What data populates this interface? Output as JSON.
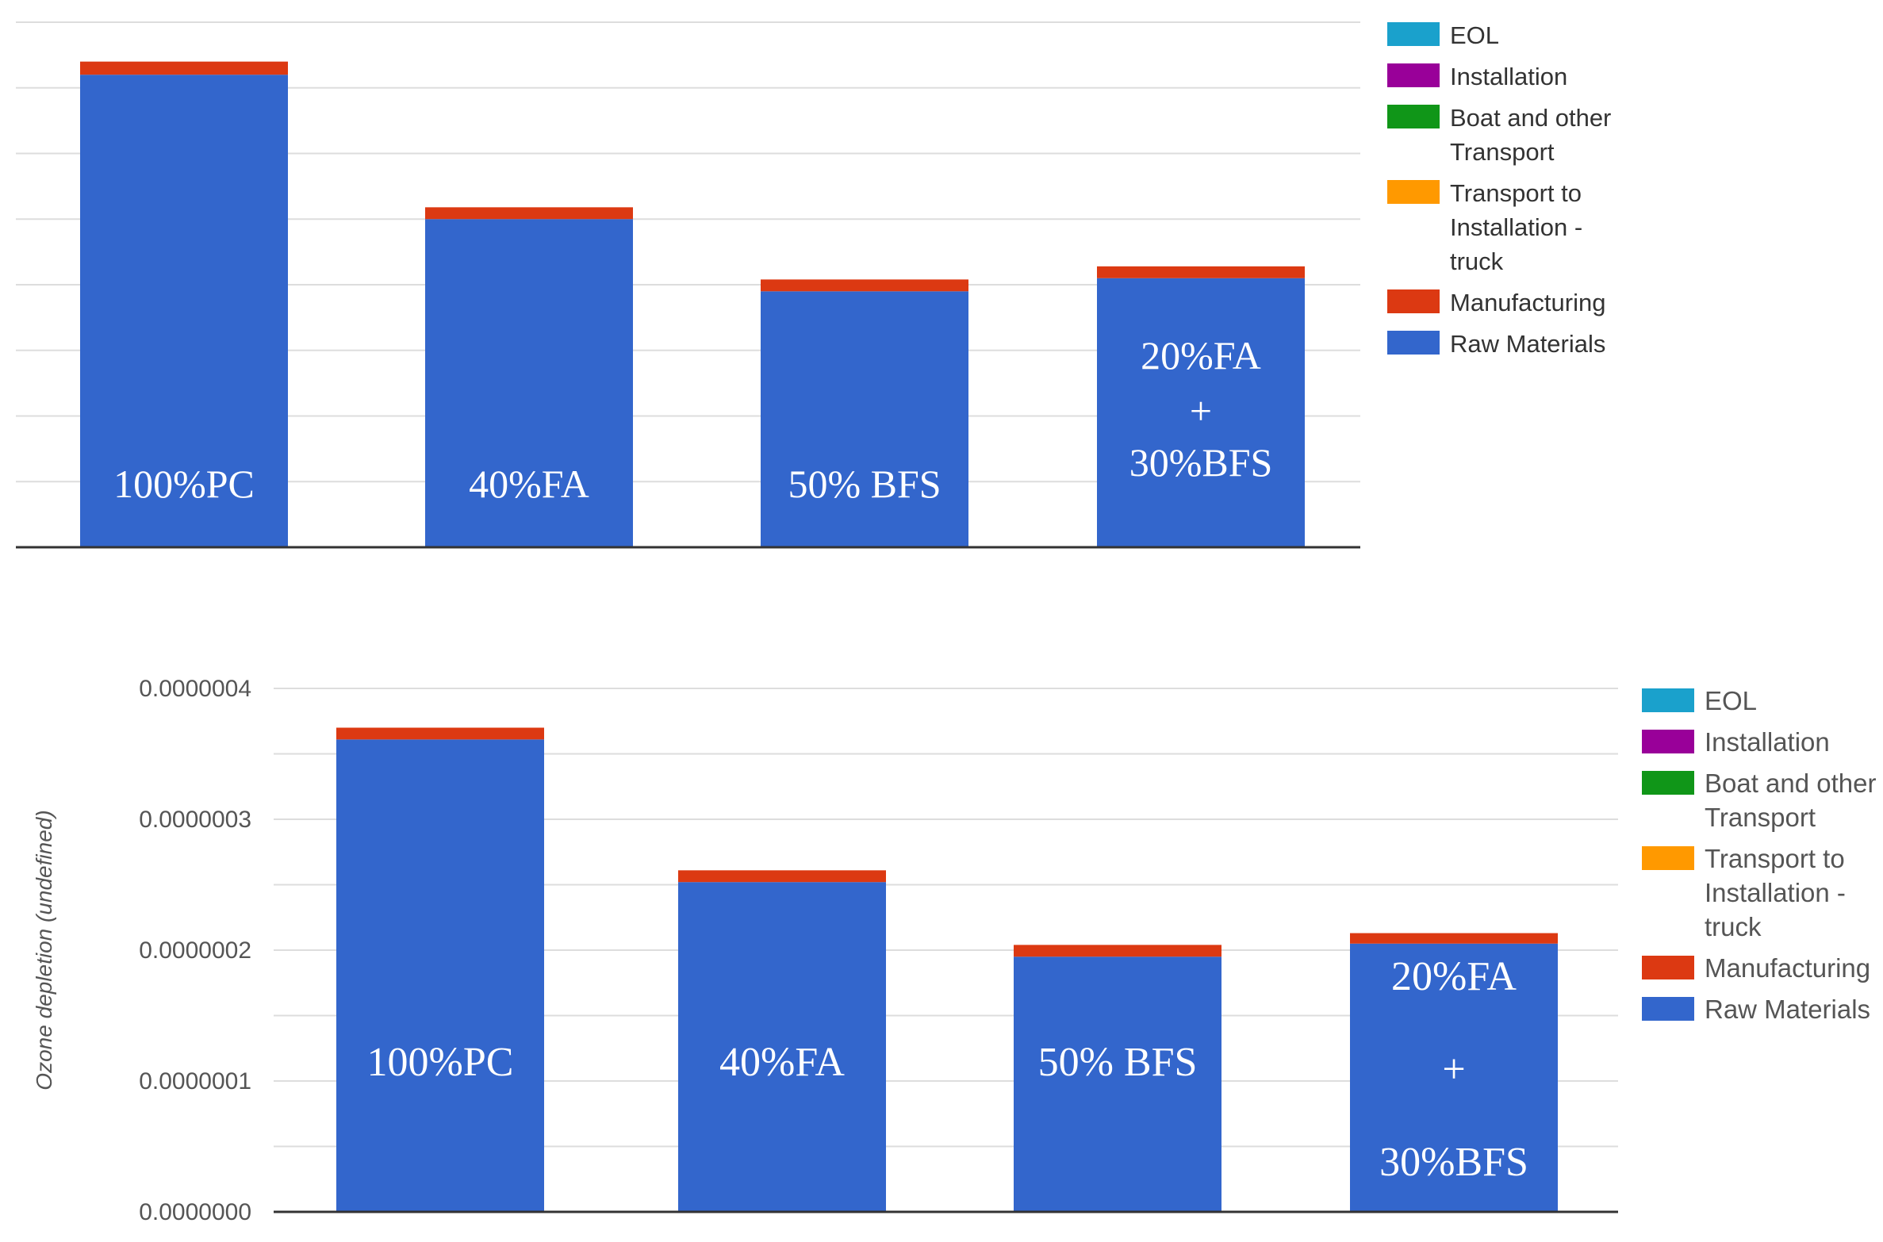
{
  "colors": {
    "EOL": "#1aa1cc",
    "Installation": "#990099",
    "Boat and other Transport": "#109618",
    "Transport to Installation - truck": "#ff9900",
    "Manufacturing": "#dc3912",
    "Raw Materials": "#3366cc"
  },
  "chart_data": [
    {
      "type": "bar",
      "stacked": true,
      "categories": [
        "100%PC",
        "40%FA",
        "50% BFS",
        "20%FA + 30%BFS"
      ],
      "bar_labels": [
        [
          "100%PC"
        ],
        [
          "40%FA"
        ],
        [
          "50% BFS"
        ],
        [
          "20%FA",
          "+",
          "30%BFS"
        ]
      ],
      "series": [
        {
          "name": "Raw Materials",
          "values": [
            3.6,
            2.5,
            1.95,
            2.05
          ]
        },
        {
          "name": "Manufacturing",
          "values": [
            0.1,
            0.09,
            0.09,
            0.09
          ]
        },
        {
          "name": "Transport to Installation - truck",
          "values": [
            0.0,
            0.0,
            0.0,
            0.0
          ]
        },
        {
          "name": "Boat and other Transport",
          "values": [
            0.0,
            0.0,
            0.0,
            0.0
          ]
        },
        {
          "name": "Installation",
          "values": [
            0.0,
            0.0,
            0.0,
            0.0
          ]
        },
        {
          "name": "EOL",
          "values": [
            0.0,
            0.0,
            0.0,
            0.0
          ]
        }
      ],
      "legend": [
        {
          "name": "EOL",
          "lines": [
            "EOL"
          ]
        },
        {
          "name": "Installation",
          "lines": [
            "Installation"
          ]
        },
        {
          "name": "Boat and other Transport",
          "lines": [
            "Boat and other",
            "Transport"
          ]
        },
        {
          "name": "Transport to Installation - truck",
          "lines": [
            "Transport to",
            "Installation -",
            "truck"
          ]
        },
        {
          "name": "Manufacturing",
          "lines": [
            "Manufacturing"
          ]
        },
        {
          "name": "Raw Materials",
          "lines": [
            "Raw Materials"
          ]
        }
      ],
      "ylim": [
        0,
        4
      ],
      "ylabel": "",
      "y_tick_labels": [],
      "grid": true,
      "legend_position": "right"
    },
    {
      "type": "bar",
      "stacked": true,
      "categories": [
        "100%PC",
        "40%FA",
        "50% BFS",
        "20%FA + 30%BFS"
      ],
      "bar_labels": [
        [
          "100%PC"
        ],
        [
          "40%FA"
        ],
        [
          "50% BFS"
        ],
        [
          "20%FA",
          "+",
          "30%BFS"
        ]
      ],
      "series": [
        {
          "name": "Raw Materials",
          "values": [
            3.61e-07,
            2.52e-07,
            1.95e-07,
            2.05e-07
          ]
        },
        {
          "name": "Manufacturing",
          "values": [
            9e-09,
            9e-09,
            9e-09,
            8e-09
          ]
        },
        {
          "name": "Transport to Installation - truck",
          "values": [
            0.0,
            0.0,
            0.0,
            0.0
          ]
        },
        {
          "name": "Boat and other Transport",
          "values": [
            0.0,
            0.0,
            0.0,
            0.0
          ]
        },
        {
          "name": "Installation",
          "values": [
            0.0,
            0.0,
            0.0,
            0.0
          ]
        },
        {
          "name": "EOL",
          "values": [
            0.0,
            0.0,
            0.0,
            0.0
          ]
        }
      ],
      "legend": [
        {
          "name": "EOL",
          "lines": [
            "EOL"
          ]
        },
        {
          "name": "Installation",
          "lines": [
            "Installation"
          ]
        },
        {
          "name": "Boat and other Transport",
          "lines": [
            "Boat and other",
            "Transport"
          ]
        },
        {
          "name": "Transport to Installation - truck",
          "lines": [
            "Transport to",
            "Installation -",
            "truck"
          ]
        },
        {
          "name": "Manufacturing",
          "lines": [
            "Manufacturing"
          ]
        },
        {
          "name": "Raw Materials",
          "lines": [
            "Raw Materials"
          ]
        }
      ],
      "ylim": [
        0,
        4e-07
      ],
      "ylabel": "Ozone depletion (undefined)",
      "y_tick_labels": [
        "0.0000000",
        "0.0000001",
        "0.0000002",
        "0.0000003",
        "0.0000004"
      ],
      "grid": true,
      "legend_position": "right"
    }
  ]
}
